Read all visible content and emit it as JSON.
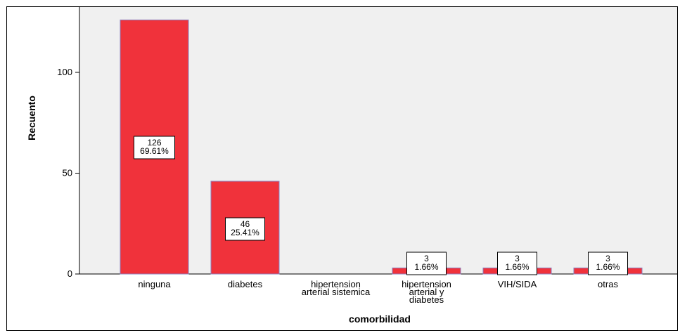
{
  "chart_data": {
    "type": "bar",
    "categories": [
      [
        "ninguna"
      ],
      [
        "diabetes"
      ],
      [
        "hipertension",
        "arterial sistemica"
      ],
      [
        "hipertension",
        "arterial y",
        "diabetes"
      ],
      [
        "VIH/SIDA"
      ],
      [
        "otras"
      ]
    ],
    "values": [
      126,
      46,
      0,
      3,
      3,
      3
    ],
    "data_labels": [
      [
        "126",
        "69.61%"
      ],
      [
        "46",
        "25.41%"
      ],
      null,
      [
        "3",
        "1.66%"
      ],
      [
        "3",
        "1.66%"
      ],
      [
        "3",
        "1.66%"
      ]
    ],
    "xlabel": "comorbilidad",
    "ylabel": "Recuento",
    "ylim": [
      0,
      126
    ],
    "yticks": [
      0,
      50,
      100
    ],
    "grid": false,
    "colors": {
      "bar_fill": "#f0323b",
      "bar_stroke": "#8a80c0",
      "plot_background": "#f0f0f0"
    }
  }
}
